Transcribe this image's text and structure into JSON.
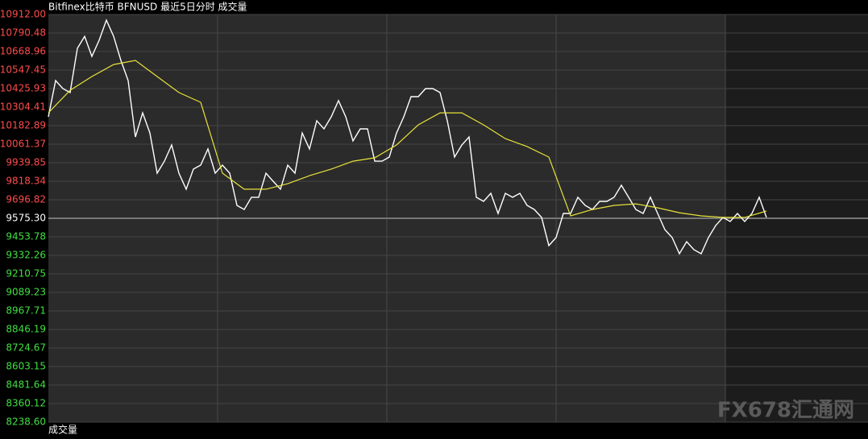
{
  "chart_data": {
    "type": "line",
    "title": "Bitfinex比特币 BFNUSD 最近5日分时 成交量",
    "volume_label": "成交量",
    "watermark": "FX678汇通网",
    "ylim": [
      8238.6,
      10912
    ],
    "yticks": [
      {
        "value": 10912,
        "label": "10912.00"
      },
      {
        "value": 10790.48,
        "label": "10790.48"
      },
      {
        "value": 10668.96,
        "label": "10668.96"
      },
      {
        "value": 10547.45,
        "label": "10547.45"
      },
      {
        "value": 10425.93,
        "label": "10425.93"
      },
      {
        "value": 10304.41,
        "label": "10304.41"
      },
      {
        "value": 10182.89,
        "label": "10182.89"
      },
      {
        "value": 10061.37,
        "label": "10061.37"
      },
      {
        "value": 9939.85,
        "label": "9939.85"
      },
      {
        "value": 9818.34,
        "label": "9818.34"
      },
      {
        "value": 9696.82,
        "label": "9696.82"
      },
      {
        "value": 9575.3,
        "label": "9575.30"
      },
      {
        "value": 9453.78,
        "label": "9453.78"
      },
      {
        "value": 9332.26,
        "label": "9332.26"
      },
      {
        "value": 9210.75,
        "label": "9210.75"
      },
      {
        "value": 9089.23,
        "label": "9089.23"
      },
      {
        "value": 8967.71,
        "label": "8967.71"
      },
      {
        "value": 8846.19,
        "label": "8846.19"
      },
      {
        "value": 8724.67,
        "label": "8724.67"
      },
      {
        "value": 8603.15,
        "label": "8603.15"
      },
      {
        "value": 8481.64,
        "label": "8481.64"
      },
      {
        "value": 8360.12,
        "label": "8360.12"
      },
      {
        "value": 8238.6,
        "label": "8238.60"
      }
    ],
    "prev_close": 9575.3,
    "grid": true,
    "up_color": "#ff4b4b",
    "down_color": "#3fe03f",
    "flat_color": "#ffffff",
    "series": [
      {
        "color": "#ffffff",
        "values": [
          10241,
          10479,
          10426,
          10400,
          10690,
          10769,
          10637,
          10743,
          10875,
          10769,
          10611,
          10479,
          10109,
          10267,
          10135,
          9871,
          9950,
          10056,
          9871,
          9766,
          9898,
          9924,
          10030,
          9871,
          9924,
          9871,
          9660,
          9633,
          9713,
          9713,
          9871,
          9818,
          9766,
          9924,
          9871,
          10135,
          10030,
          10215,
          10162,
          10241,
          10347,
          10241,
          10083,
          10162,
          10162,
          9950,
          9950,
          9977,
          10135,
          10241,
          10373,
          10373,
          10426,
          10426,
          10400,
          10215,
          9977,
          10056,
          10109,
          9713,
          9686,
          9739,
          9607,
          9739,
          9713,
          9739,
          9660,
          9633,
          9581,
          9396,
          9449,
          9607,
          9607,
          9713,
          9660,
          9633,
          9686,
          9686,
          9713,
          9792,
          9713,
          9633,
          9607,
          9713,
          9607,
          9501,
          9449,
          9343,
          9422,
          9369,
          9343,
          9449,
          9528,
          9581,
          9554,
          9607,
          9554,
          9607,
          9713,
          9581
        ]
      },
      {
        "color": "#e8e23a",
        "values": [
          10267,
          10415,
          10505,
          10584,
          10611,
          10505,
          10400,
          10336,
          9871,
          9766,
          9766,
          9802,
          9855,
          9898,
          9950,
          9972,
          10056,
          10188,
          10267,
          10267,
          10188,
          10098,
          10046,
          9977,
          9591,
          9633,
          9660,
          9670,
          9644,
          9612,
          9591,
          9581,
          9581,
          9623
        ]
      }
    ]
  }
}
